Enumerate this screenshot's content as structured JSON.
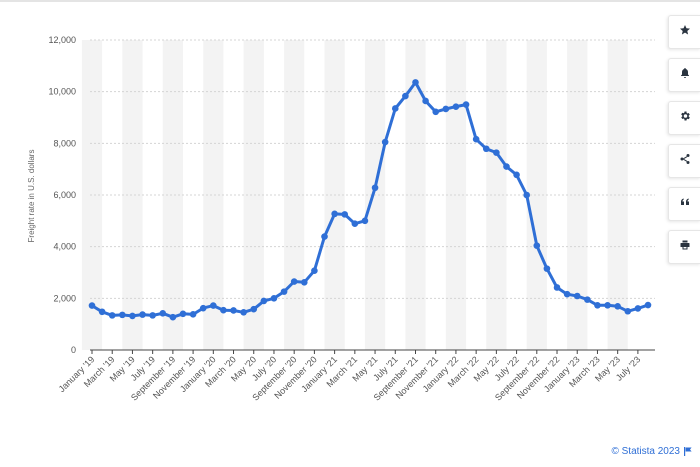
{
  "chart_data": {
    "type": "line",
    "title": "",
    "ylabel": "Freight rate in U.S. dollars",
    "xlabel": "",
    "ylim": [
      0,
      12000
    ],
    "yticks": [
      0,
      2000,
      4000,
      6000,
      8000,
      10000,
      12000
    ],
    "ytick_labels": [
      "0",
      "2,000",
      "4,000",
      "6,000",
      "8,000",
      "10,000",
      "12,000"
    ],
    "x_tick_labels": [
      "January '19",
      "March '19",
      "May '19",
      "July '19",
      "September '19",
      "November '19",
      "January '20",
      "March '20",
      "May '20",
      "July '20",
      "September '20",
      "November '20",
      "January '21",
      "March '21",
      "May '21",
      "July '21",
      "September '21",
      "November '21",
      "January '22",
      "March '22",
      "May '22",
      "July '22",
      "September '22",
      "November '22",
      "January '23",
      "March '23",
      "May '23",
      "July '23"
    ],
    "grid": true,
    "color": "#2f6fd6",
    "series": [
      {
        "x": [
          "Jan 2019",
          "Feb 2019",
          "Mar 2019",
          "Apr 2019",
          "May 2019",
          "Jun 2019",
          "Jul 2019",
          "Aug 2019",
          "Sep 2019",
          "Oct 2019",
          "Nov 2019",
          "Dec 2019",
          "Jan 2020",
          "Feb 2020",
          "Mar 2020",
          "Apr 2020",
          "May 2020",
          "Jun 2020",
          "Jul 2020",
          "Aug 2020",
          "Sep 2020",
          "Oct 2020",
          "Nov 2020",
          "Dec 2020",
          "Jan 2021",
          "Feb 2021",
          "Mar 2021",
          "Apr 2021",
          "May 2021",
          "Jun 2021",
          "Jul 2021",
          "Aug 2021",
          "Sep 2021",
          "Oct 2021",
          "Nov 2021",
          "Dec 2021",
          "Jan 2022",
          "Feb 2022",
          "Mar 2022",
          "Apr 2022",
          "May 2022",
          "Jun 2022",
          "Jul 2022",
          "Aug 2022",
          "Sep 2022",
          "Oct 2022",
          "Nov 2022",
          "Dec 2022",
          "Jan 2023",
          "Feb 2023",
          "Mar 2023",
          "Apr 2023",
          "May 2023",
          "Jun 2023",
          "Jul 2023",
          "Aug 2023"
        ],
        "values": [
          1720,
          1480,
          1340,
          1360,
          1320,
          1370,
          1340,
          1420,
          1270,
          1400,
          1380,
          1620,
          1720,
          1540,
          1530,
          1460,
          1580,
          1900,
          2000,
          2260,
          2650,
          2620,
          3070,
          4390,
          5270,
          5250,
          4890,
          5000,
          6280,
          8050,
          9350,
          9830,
          10360,
          9640,
          9220,
          9330,
          9420,
          9500,
          8160,
          7790,
          7640,
          7100,
          6780,
          6000,
          4040,
          3150,
          2420,
          2160,
          2090,
          1950,
          1730,
          1730,
          1690,
          1500,
          1610,
          1740
        ]
      }
    ]
  },
  "toolbar": {
    "icons": [
      "star-icon",
      "bell-icon",
      "gear-icon",
      "share-icon",
      "quote-icon",
      "print-icon"
    ]
  },
  "footer": {
    "credit": "© Statista 2023"
  }
}
